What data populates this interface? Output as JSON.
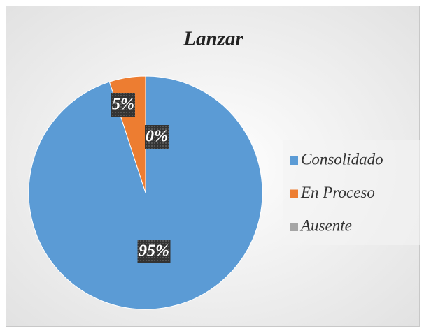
{
  "chart_data": {
    "type": "pie",
    "title": "Lanzar",
    "categories": [
      "Consolidado",
      "En Proceso",
      "Ausente"
    ],
    "values": [
      95,
      5,
      0
    ],
    "value_labels": [
      "95%",
      "5%",
      "0%"
    ],
    "colors": [
      "#5b9bd5",
      "#ed7d31",
      "#a5a5a5"
    ],
    "legend": "right"
  }
}
